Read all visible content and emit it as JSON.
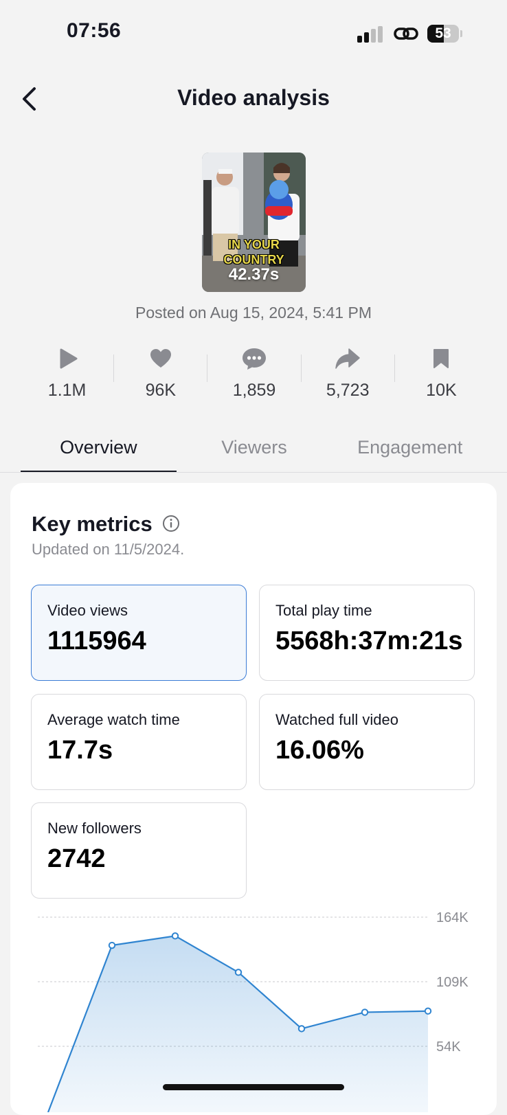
{
  "status_bar": {
    "time": "07:56",
    "battery": "53",
    "battery_level": 0.53,
    "signal_bars_active": 2,
    "signal_bars_total": 4
  },
  "header": {
    "title": "Video analysis",
    "back_icon": "chevron-left-icon"
  },
  "video": {
    "thumbnail_caption_line1": "IN YOUR",
    "thumbnail_caption_line2": "COUNTRY",
    "duration": "42.37s",
    "posted": "Posted on Aug 15, 2024, 5:41 PM"
  },
  "stats": [
    {
      "icon": "play-icon",
      "value": "1.1M"
    },
    {
      "icon": "heart-icon",
      "value": "96K"
    },
    {
      "icon": "comment-icon",
      "value": "1,859"
    },
    {
      "icon": "share-icon",
      "value": "5,723"
    },
    {
      "icon": "bookmark-icon",
      "value": "10K"
    }
  ],
  "tabs": [
    {
      "label": "Overview",
      "active": true
    },
    {
      "label": "Viewers",
      "active": false
    },
    {
      "label": "Engagement",
      "active": false
    }
  ],
  "key_metrics": {
    "title": "Key metrics",
    "updated": "Updated on 11/5/2024.",
    "metrics": [
      {
        "label": "Video views",
        "value": "1115964",
        "selected": true
      },
      {
        "label": "Total play time",
        "value": "5568h:37m:21s",
        "selected": false
      },
      {
        "label": "Average watch time",
        "value": "17.7s",
        "selected": false
      },
      {
        "label": "Watched full video",
        "value": "16.06%",
        "selected": false
      },
      {
        "label": "New followers",
        "value": "2742",
        "selected": false
      }
    ]
  },
  "chart_data": {
    "type": "area",
    "series": [
      {
        "values": [
          0,
          140000,
          148000,
          117000,
          69000,
          83000,
          84000
        ]
      }
    ],
    "y_ticks": [
      "164K",
      "109K",
      "54K"
    ],
    "y_tick_values": [
      164000,
      109000,
      54000
    ],
    "grid": true,
    "color": "#2f84d0"
  },
  "colors": {
    "accent": "#3a7bd5",
    "chart_line": "#2f84d0",
    "background": "#f3f3f3"
  }
}
